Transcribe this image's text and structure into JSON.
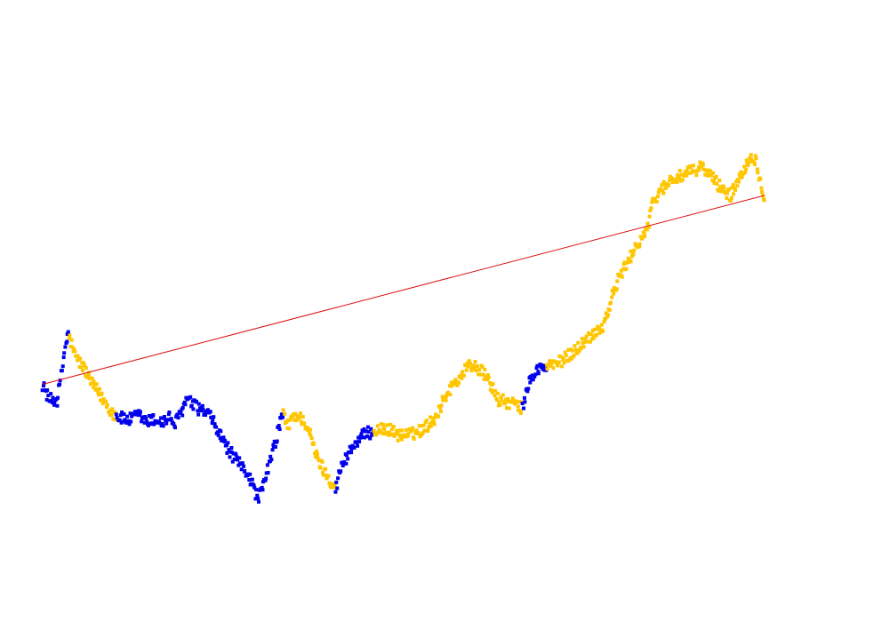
{
  "chart_data": {
    "type": "scatter",
    "title": "",
    "xlabel": "",
    "ylabel": "",
    "axes_visible": false,
    "grid": false,
    "xlim": [
      0,
      1000
    ],
    "ylim": [
      0,
      1
    ],
    "anchors": [
      [
        0,
        0.335
      ],
      [
        8,
        0.3
      ],
      [
        18,
        0.3
      ],
      [
        22,
        0.34
      ],
      [
        28,
        0.42
      ],
      [
        32,
        0.448
      ],
      [
        33,
        0.443
      ],
      [
        40,
        0.4
      ],
      [
        52,
        0.37
      ],
      [
        60,
        0.34
      ],
      [
        70,
        0.315
      ],
      [
        78,
        0.295
      ],
      [
        85,
        0.275
      ],
      [
        95,
        0.26
      ],
      [
        108,
        0.255
      ],
      [
        120,
        0.265
      ],
      [
        130,
        0.25
      ],
      [
        140,
        0.255
      ],
      [
        150,
        0.25
      ],
      [
        158,
        0.26
      ],
      [
        165,
        0.245
      ],
      [
        172,
        0.27
      ],
      [
        180,
        0.3
      ],
      [
        190,
        0.285
      ],
      [
        200,
        0.275
      ],
      [
        210,
        0.26
      ],
      [
        218,
        0.23
      ],
      [
        228,
        0.2
      ],
      [
        238,
        0.17
      ],
      [
        248,
        0.15
      ],
      [
        258,
        0.13
      ],
      [
        263,
        0.1
      ],
      [
        268,
        0.08
      ],
      [
        275,
        0.1
      ],
      [
        282,
        0.155
      ],
      [
        290,
        0.2
      ],
      [
        296,
        0.25
      ],
      [
        300,
        0.27
      ],
      [
        305,
        0.235
      ],
      [
        310,
        0.26
      ],
      [
        315,
        0.265
      ],
      [
        325,
        0.255
      ],
      [
        332,
        0.23
      ],
      [
        340,
        0.18
      ],
      [
        348,
        0.15
      ],
      [
        355,
        0.13
      ],
      [
        362,
        0.11
      ],
      [
        366,
        0.1
      ],
      [
        372,
        0.15
      ],
      [
        385,
        0.19
      ],
      [
        395,
        0.215
      ],
      [
        405,
        0.225
      ],
      [
        415,
        0.23
      ],
      [
        430,
        0.235
      ],
      [
        445,
        0.22
      ],
      [
        460,
        0.222
      ],
      [
        475,
        0.235
      ],
      [
        490,
        0.26
      ],
      [
        500,
        0.3
      ],
      [
        510,
        0.33
      ],
      [
        520,
        0.35
      ],
      [
        532,
        0.38
      ],
      [
        540,
        0.375
      ],
      [
        550,
        0.36
      ],
      [
        560,
        0.33
      ],
      [
        568,
        0.3
      ],
      [
        578,
        0.295
      ],
      [
        590,
        0.29
      ],
      [
        598,
        0.28
      ],
      [
        605,
        0.33
      ],
      [
        612,
        0.36
      ],
      [
        620,
        0.37
      ],
      [
        630,
        0.375
      ],
      [
        645,
        0.385
      ],
      [
        660,
        0.405
      ],
      [
        675,
        0.43
      ],
      [
        690,
        0.455
      ],
      [
        700,
        0.47
      ],
      [
        710,
        0.53
      ],
      [
        720,
        0.58
      ],
      [
        730,
        0.61
      ],
      [
        738,
        0.64
      ],
      [
        745,
        0.66
      ],
      [
        755,
        0.69
      ],
      [
        762,
        0.75
      ],
      [
        770,
        0.77
      ],
      [
        780,
        0.79
      ],
      [
        790,
        0.8
      ],
      [
        800,
        0.805
      ],
      [
        810,
        0.815
      ],
      [
        822,
        0.825
      ],
      [
        835,
        0.8
      ],
      [
        845,
        0.78
      ],
      [
        850,
        0.77
      ],
      [
        858,
        0.76
      ],
      [
        865,
        0.785
      ],
      [
        872,
        0.81
      ],
      [
        880,
        0.84
      ],
      [
        885,
        0.85
      ],
      [
        890,
        0.835
      ],
      [
        895,
        0.79
      ],
      [
        900,
        0.76
      ]
    ],
    "segments": [
      {
        "from": 0,
        "to": 33,
        "color": "blue"
      },
      {
        "from": 33,
        "to": 92,
        "color": "gold"
      },
      {
        "from": 92,
        "to": 300,
        "color": "blue"
      },
      {
        "from": 300,
        "to": 365,
        "color": "gold"
      },
      {
        "from": 365,
        "to": 413,
        "color": "blue"
      },
      {
        "from": 413,
        "to": 598,
        "color": "gold"
      },
      {
        "from": 598,
        "to": 628,
        "color": "blue"
      },
      {
        "from": 628,
        "to": 900,
        "color": "gold"
      }
    ],
    "trend_line": {
      "start": [
        0,
        0.335
      ],
      "end": [
        900,
        0.76
      ]
    },
    "point_count": 900,
    "colors": {
      "blue": "#0000ee",
      "gold": "#ffc600",
      "trend": "#dd1111"
    }
  }
}
